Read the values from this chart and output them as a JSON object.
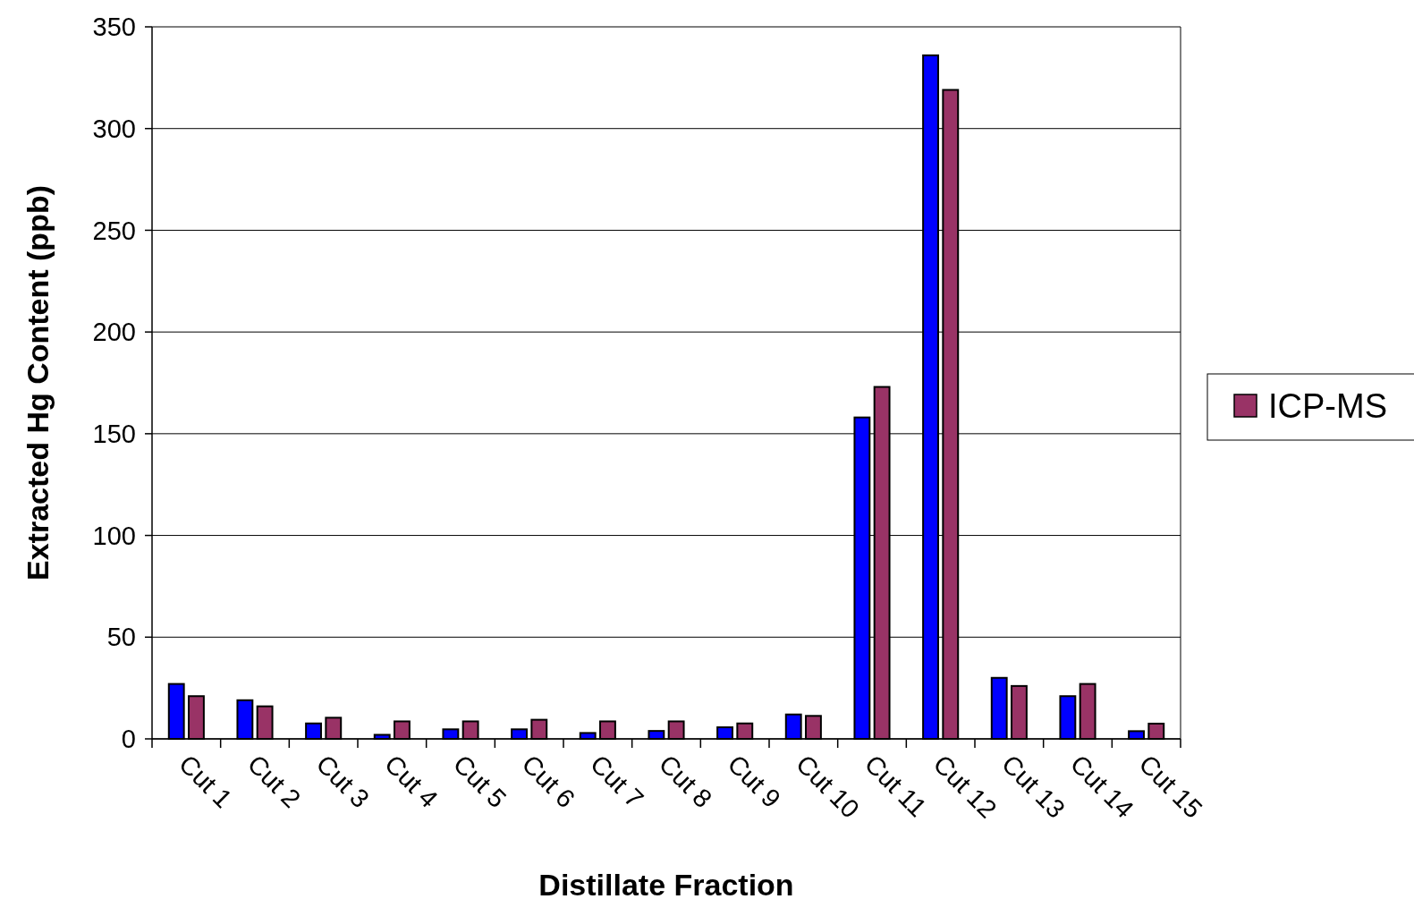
{
  "chart_data": {
    "type": "bar",
    "xlabel": "Distillate Fraction",
    "ylabel": "Extracted Hg Content (ppb)",
    "categories": [
      "Cut 1",
      "Cut 2",
      "Cut 3",
      "Cut 4",
      "Cut 5",
      "Cut 6",
      "Cut 7",
      "Cut 8",
      "Cut 9",
      "Cut 10",
      "Cut 11",
      "Cut 12",
      "Cut 13",
      "Cut 14",
      "Cut 15"
    ],
    "series": [
      {
        "color": "#0000ff",
        "values": [
          27,
          19,
          7.6,
          2,
          4.7,
          4.7,
          2.9,
          3.9,
          5.7,
          12,
          158,
          336,
          30,
          21,
          3.8
        ]
      },
      {
        "name": "ICP-MS",
        "color": "#993366",
        "values": [
          21,
          16,
          10.4,
          8.6,
          8.6,
          9.4,
          8.6,
          8.6,
          7.6,
          11.3,
          173,
          319,
          26,
          27,
          7.5
        ]
      }
    ],
    "ylim": [
      0,
      350
    ],
    "yticks": [
      0,
      50,
      100,
      150,
      200,
      250,
      300,
      350
    ],
    "grid": "y",
    "legend": "right"
  }
}
